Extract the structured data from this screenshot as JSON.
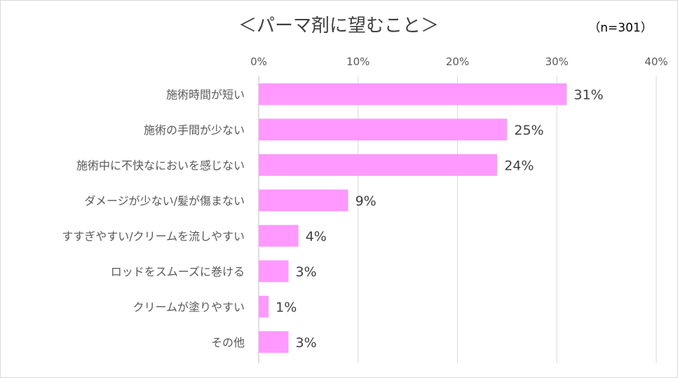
{
  "chart_data": {
    "type": "bar",
    "orientation": "horizontal",
    "title": "＜パーマ剤に望むこと＞",
    "sample_size_label": "（n=301）",
    "categories": [
      "施術時間が短い",
      "施術の手間が少ない",
      "施術中に不快なにおいを感じない",
      "ダメージが少ない/髪が傷まない",
      "すすぎやすい/クリームを流しやすい",
      "ロッドをスムーズに巻ける",
      "クリームが塗りやすい",
      "その他"
    ],
    "values": [
      31,
      25,
      24,
      9,
      4,
      3,
      1,
      3
    ],
    "data_labels": [
      "31%",
      "25%",
      "24%",
      "9%",
      "4%",
      "3%",
      "1%",
      "3%"
    ],
    "x_ticks": [
      "0%",
      "10%",
      "20%",
      "30%",
      "40%"
    ],
    "xlim": [
      0,
      40
    ],
    "xlabel": "",
    "ylabel": "",
    "grid": true,
    "legend": "none",
    "bar_color": "#ff99ff"
  }
}
